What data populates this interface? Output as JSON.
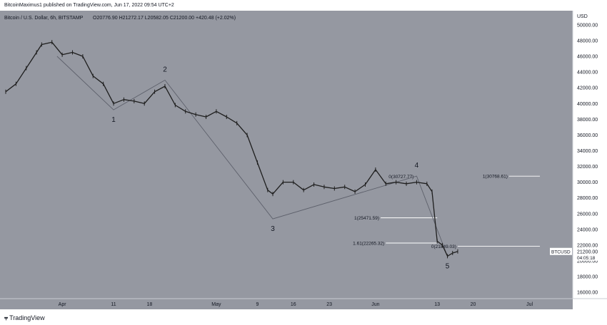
{
  "header": {
    "author_line": "BitcoinMaximus1 published on TradingView.com, Jun 17, 2022 09:54 UTC+2"
  },
  "legend": {
    "symbol": "Bitcoin / U.S. Dollar, 6h, BITSTAMP",
    "ohlc_text": "O20776.90  H21272.17  L20582.05  C21200.00  +420.48 (+2.02%)"
  },
  "footer": {
    "brand": "TradingView"
  },
  "colors": {
    "background": "#9598a1",
    "axis_bg": "#ffffff",
    "candle": "#1e1e1e",
    "line": "#5d606b",
    "ref_line": "#ffffff"
  },
  "chart_data": {
    "type": "line",
    "title": "",
    "y_axis_title": "USD",
    "ylim": [
      15200,
      51800
    ],
    "y_ticks": [
      16000,
      18000,
      20000,
      22000,
      24000,
      26000,
      28000,
      30000,
      32000,
      34000,
      36000,
      38000,
      40000,
      42000,
      44000,
      46000,
      48000,
      50000
    ],
    "y_tick_labels": [
      "16000.00",
      "18000.00",
      "20000.00",
      "22000.00",
      "24000.00",
      "26000.00",
      "28000.00",
      "30000.00",
      "32000.00",
      "34000.00",
      "36000.00",
      "38000.00",
      "40000.00",
      "42000.00",
      "44000.00",
      "46000.00",
      "48000.00",
      "50000.00"
    ],
    "x_range": [
      "2022-03-21",
      "2022-07-08"
    ],
    "x_ticks": [
      {
        "date": "2022-04-01",
        "label": "Apr"
      },
      {
        "date": "2022-04-11",
        "label": "11"
      },
      {
        "date": "2022-04-18",
        "label": "18"
      },
      {
        "date": "2022-05-01",
        "label": "May"
      },
      {
        "date": "2022-05-09",
        "label": "9"
      },
      {
        "date": "2022-05-16",
        "label": "16"
      },
      {
        "date": "2022-05-23",
        "label": "23"
      },
      {
        "date": "2022-06-01",
        "label": "Jun"
      },
      {
        "date": "2022-06-13",
        "label": "13"
      },
      {
        "date": "2022-06-20",
        "label": "20"
      },
      {
        "date": "2022-07-01",
        "label": "Jul"
      }
    ],
    "price_series": {
      "name": "Bitcoin / U.S. Dollar",
      "dates": [
        "2022-03-21",
        "2022-03-23",
        "2022-03-25",
        "2022-03-27",
        "2022-03-28",
        "2022-03-30",
        "2022-04-01",
        "2022-04-03",
        "2022-04-05",
        "2022-04-07",
        "2022-04-09",
        "2022-04-11",
        "2022-04-13",
        "2022-04-15",
        "2022-04-17",
        "2022-04-19",
        "2022-04-21",
        "2022-04-23",
        "2022-04-25",
        "2022-04-27",
        "2022-04-29",
        "2022-05-01",
        "2022-05-03",
        "2022-05-05",
        "2022-05-07",
        "2022-05-09",
        "2022-05-11",
        "2022-05-12",
        "2022-05-14",
        "2022-05-16",
        "2022-05-18",
        "2022-05-20",
        "2022-05-22",
        "2022-05-24",
        "2022-05-26",
        "2022-05-28",
        "2022-05-30",
        "2022-06-01",
        "2022-06-03",
        "2022-06-05",
        "2022-06-07",
        "2022-06-09",
        "2022-06-11",
        "2022-06-12",
        "2022-06-13",
        "2022-06-14",
        "2022-06-15",
        "2022-06-16",
        "2022-06-17"
      ],
      "values": [
        41500,
        42500,
        44500,
        46500,
        47500,
        47800,
        46200,
        46500,
        46000,
        43500,
        42500,
        40000,
        40500,
        40300,
        40000,
        41500,
        42200,
        39800,
        39000,
        38600,
        38300,
        39000,
        38300,
        37500,
        36000,
        32500,
        29000,
        28500,
        30000,
        30000,
        29000,
        29700,
        29400,
        29200,
        29400,
        28800,
        29700,
        31600,
        29800,
        30000,
        29800,
        30000,
        29800,
        28800,
        22500,
        22000,
        20600,
        21000,
        21200
      ]
    },
    "waves": [
      {
        "label": "1",
        "date": "2022-04-11",
        "value": 39200
      },
      {
        "label": "2",
        "date": "2022-04-21",
        "value": 42976
      },
      {
        "label": "3",
        "date": "2022-05-12",
        "value": 25338
      },
      {
        "label": "4",
        "date": "2022-06-09",
        "value": 30768.61
      },
      {
        "label": "5",
        "date": "2022-06-15",
        "value": 20600
      }
    ],
    "fib_levels": [
      {
        "label": "1(30768.61)",
        "value": 30768.61,
        "from": "2022-06-27",
        "to": "2022-07-03"
      },
      {
        "label": "0(21849.03)",
        "value": 21849.03,
        "from": "2022-06-17",
        "to": "2022-07-03"
      },
      {
        "label": "1(25471.59)",
        "value": 25471.59,
        "from": "2022-06-02",
        "to": "2022-06-13"
      },
      {
        "label": "1.61(22265.32)",
        "value": 22265.32,
        "from": "2022-06-03",
        "to": "2022-06-13"
      }
    ],
    "other_annotations": [
      {
        "label": "0(30727.77)",
        "value": 30727.77,
        "date": "2022-06-06"
      }
    ],
    "last_price": {
      "symbol": "BTCUSD",
      "value": "21200.00",
      "countdown": "04:05:18"
    }
  }
}
